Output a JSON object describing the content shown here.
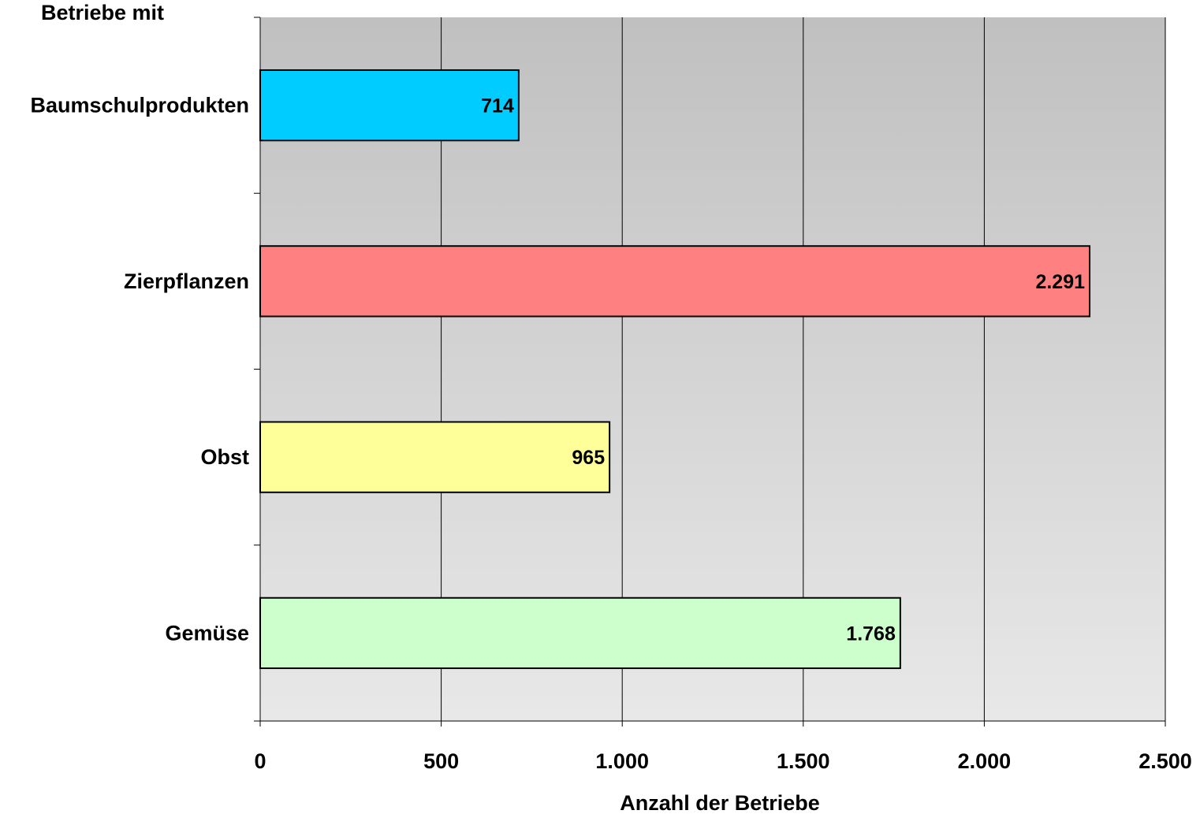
{
  "chart_data": {
    "type": "bar",
    "orientation": "horizontal",
    "ylabel": "Betriebe mit",
    "xlabel": "Anzahl der Betriebe",
    "categories": [
      "Baumschulprodukten",
      "Zierpflanzen",
      "Obst",
      "Gemüse"
    ],
    "values": [
      714,
      2291,
      965,
      1768
    ],
    "value_labels": [
      "714",
      "2.291",
      "965",
      "1.768"
    ],
    "bar_colors": [
      "#00CCFF",
      "#FF8080",
      "#FFFF99",
      "#CCFFCC"
    ],
    "xlim": [
      0,
      2500
    ],
    "x_ticks": [
      0,
      500,
      1000,
      1500,
      2000,
      2500
    ],
    "x_tick_labels": [
      "0",
      "500",
      "1.000",
      "1.500",
      "2.000",
      "2.500"
    ],
    "grid": "vertical",
    "plot_background": "gradient gray to light gray"
  }
}
